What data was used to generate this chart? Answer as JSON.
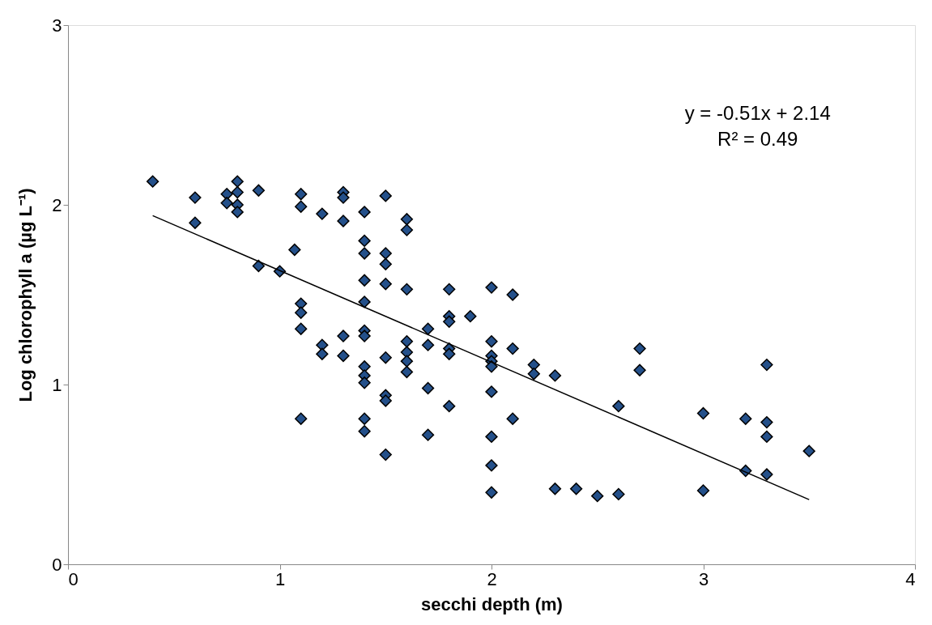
{
  "chart_data": {
    "type": "scatter",
    "xlabel": "secchi depth (m)",
    "ylabel": "Log chlorophyll a (µg L⁻¹)",
    "xlim": [
      0,
      4
    ],
    "xticks": [
      0,
      1,
      2,
      3,
      4
    ],
    "ylim": [
      0,
      3
    ],
    "yticks": [
      0,
      1,
      2,
      3
    ],
    "grid": false,
    "marker": "diamond",
    "annotations": [
      "y = -0.51x + 2.14",
      "R² = 0.49"
    ],
    "series": [
      {
        "color": "#24508a",
        "x": [
          0.4,
          0.6,
          0.6,
          0.75,
          0.75,
          0.8,
          0.8,
          0.8,
          0.8,
          0.9,
          0.9,
          1.0,
          1.07,
          1.1,
          1.1,
          1.1,
          1.1,
          1.1,
          1.1,
          1.2,
          1.2,
          1.2,
          1.3,
          1.3,
          1.3,
          1.3,
          1.3,
          1.4,
          1.4,
          1.4,
          1.4,
          1.4,
          1.4,
          1.4,
          1.4,
          1.4,
          1.4,
          1.4,
          1.4,
          1.5,
          1.5,
          1.5,
          1.5,
          1.5,
          1.5,
          1.5,
          1.5,
          1.6,
          1.6,
          1.6,
          1.6,
          1.6,
          1.6,
          1.6,
          1.7,
          1.7,
          1.7,
          1.7,
          1.8,
          1.8,
          1.8,
          1.8,
          1.8,
          1.8,
          1.9,
          2.0,
          2.0,
          2.0,
          2.0,
          2.0,
          2.0,
          2.0,
          2.0,
          2.0,
          2.1,
          2.1,
          2.1,
          2.2,
          2.2,
          2.3,
          2.3,
          2.4,
          2.5,
          2.6,
          2.6,
          2.7,
          2.7,
          3.0,
          3.0,
          3.2,
          3.2,
          3.3,
          3.3,
          3.3,
          3.3,
          3.5
        ],
        "values": [
          2.13,
          2.04,
          1.9,
          2.06,
          2.01,
          2.13,
          2.07,
          2.0,
          1.96,
          2.08,
          1.66,
          1.63,
          1.75,
          2.06,
          1.99,
          1.45,
          1.4,
          1.31,
          0.81,
          1.95,
          1.22,
          1.17,
          2.07,
          2.04,
          1.91,
          1.27,
          1.16,
          1.96,
          1.8,
          1.73,
          1.58,
          1.46,
          1.3,
          1.27,
          1.1,
          1.05,
          1.01,
          0.81,
          0.74,
          2.05,
          1.73,
          1.67,
          1.56,
          1.15,
          0.94,
          0.91,
          0.61,
          1.92,
          1.86,
          1.53,
          1.24,
          1.18,
          1.13,
          1.07,
          1.31,
          1.22,
          0.98,
          0.72,
          1.53,
          1.38,
          1.35,
          1.2,
          1.17,
          0.88,
          1.38,
          1.54,
          1.24,
          1.16,
          1.13,
          1.1,
          0.96,
          0.71,
          0.55,
          0.4,
          1.5,
          1.2,
          0.81,
          1.11,
          1.06,
          1.05,
          0.42,
          0.42,
          0.38,
          0.39,
          0.88,
          1.2,
          1.08,
          0.84,
          0.41,
          0.81,
          0.52,
          1.11,
          0.79,
          0.71,
          0.5,
          0.63
        ]
      },
      {
        "type": "line",
        "marker": "none",
        "color": "#000000",
        "x": [
          0.4,
          3.5
        ],
        "values": [
          1.94,
          0.36
        ]
      }
    ]
  }
}
